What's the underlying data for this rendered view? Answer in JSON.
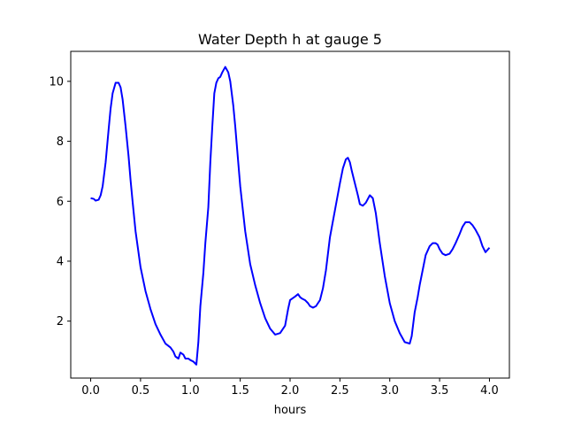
{
  "chart_data": {
    "type": "line",
    "title": "Water Depth h at gauge 5",
    "xlabel": "hours",
    "ylabel": "",
    "xlim": [
      -0.2,
      4.2
    ],
    "ylim": [
      0.1,
      11.0
    ],
    "x_ticks": [
      "0.0",
      "0.5",
      "1.0",
      "1.5",
      "2.0",
      "2.5",
      "3.0",
      "3.5",
      "4.0"
    ],
    "y_ticks": [
      "2",
      "4",
      "6",
      "8",
      "10"
    ],
    "grid": false,
    "legend": "none",
    "series": [
      {
        "color": "#0000ff",
        "x": [
          0.0,
          0.03,
          0.05,
          0.08,
          0.1,
          0.12,
          0.15,
          0.18,
          0.2,
          0.22,
          0.25,
          0.28,
          0.3,
          0.32,
          0.35,
          0.38,
          0.4,
          0.42,
          0.45,
          0.5,
          0.55,
          0.6,
          0.65,
          0.7,
          0.75,
          0.8,
          0.83,
          0.85,
          0.88,
          0.9,
          0.93,
          0.95,
          0.98,
          1.0,
          1.03,
          1.06,
          1.08,
          1.1,
          1.13,
          1.15,
          1.18,
          1.2,
          1.22,
          1.24,
          1.26,
          1.28,
          1.3,
          1.32,
          1.35,
          1.38,
          1.4,
          1.43,
          1.45,
          1.48,
          1.5,
          1.55,
          1.6,
          1.65,
          1.7,
          1.75,
          1.8,
          1.85,
          1.9,
          1.95,
          1.98,
          2.0,
          2.02,
          2.05,
          2.08,
          2.1,
          2.12,
          2.15,
          2.18,
          2.2,
          2.23,
          2.26,
          2.3,
          2.33,
          2.36,
          2.4,
          2.45,
          2.5,
          2.53,
          2.56,
          2.58,
          2.6,
          2.62,
          2.65,
          2.68,
          2.7,
          2.73,
          2.76,
          2.8,
          2.83,
          2.86,
          2.9,
          2.95,
          3.0,
          3.05,
          3.1,
          3.15,
          3.2,
          3.22,
          3.25,
          3.28,
          3.3,
          3.33,
          3.36,
          3.4,
          3.43,
          3.46,
          3.48,
          3.5,
          3.53,
          3.56,
          3.6,
          3.63,
          3.66,
          3.7,
          3.73,
          3.76,
          3.8,
          3.83,
          3.86,
          3.9,
          3.93,
          3.96,
          4.0
        ],
        "y": [
          6.1,
          6.08,
          6.02,
          6.05,
          6.2,
          6.5,
          7.3,
          8.4,
          9.1,
          9.6,
          9.95,
          9.95,
          9.8,
          9.4,
          8.5,
          7.5,
          6.7,
          6.0,
          5.0,
          3.8,
          3.0,
          2.4,
          1.9,
          1.55,
          1.25,
          1.12,
          0.98,
          0.82,
          0.75,
          0.95,
          0.88,
          0.75,
          0.75,
          0.7,
          0.65,
          0.55,
          1.3,
          2.5,
          3.6,
          4.6,
          5.8,
          7.3,
          8.5,
          9.6,
          9.95,
          10.1,
          10.15,
          10.3,
          10.48,
          10.3,
          10.0,
          9.2,
          8.5,
          7.3,
          6.5,
          5.0,
          3.9,
          3.2,
          2.6,
          2.1,
          1.75,
          1.55,
          1.6,
          1.85,
          2.4,
          2.7,
          2.75,
          2.82,
          2.9,
          2.8,
          2.75,
          2.7,
          2.6,
          2.5,
          2.45,
          2.5,
          2.7,
          3.1,
          3.7,
          4.8,
          5.7,
          6.6,
          7.1,
          7.4,
          7.45,
          7.3,
          7.0,
          6.6,
          6.2,
          5.9,
          5.85,
          5.95,
          6.2,
          6.1,
          5.6,
          4.6,
          3.5,
          2.6,
          2.0,
          1.6,
          1.3,
          1.25,
          1.5,
          2.3,
          2.8,
          3.2,
          3.7,
          4.2,
          4.5,
          4.6,
          4.6,
          4.55,
          4.4,
          4.25,
          4.2,
          4.25,
          4.4,
          4.6,
          4.9,
          5.15,
          5.3,
          5.3,
          5.2,
          5.05,
          4.8,
          4.5,
          4.3,
          4.45
        ]
      }
    ]
  }
}
